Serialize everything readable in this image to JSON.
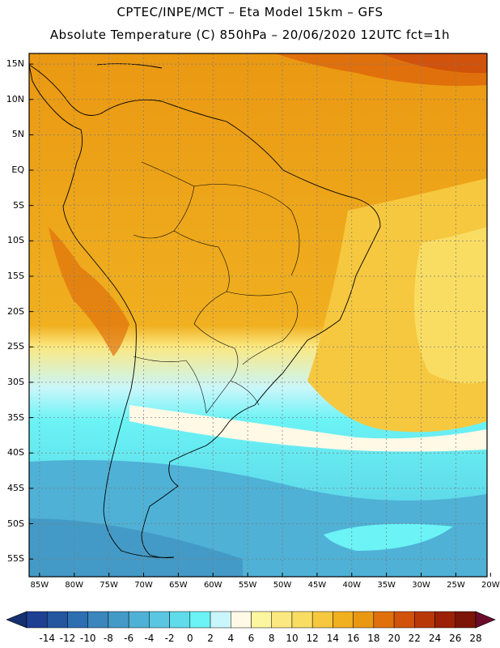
{
  "header": {
    "line1": "CPTEC/INPE/MCT –  Eta Model 15km – GFS",
    "line2": "Absolute Temperature (C) 850hPa – 20/06/2020 12UTC fct=1h"
  },
  "map": {
    "lat_labels": [
      "15N",
      "10N",
      "5N",
      "EQ",
      "5S",
      "10S",
      "15S",
      "20S",
      "25S",
      "30S",
      "35S",
      "40S",
      "45S",
      "50S",
      "55S"
    ],
    "lon_labels": [
      "85W",
      "80W",
      "75W",
      "70W",
      "65W",
      "60W",
      "55W",
      "50W",
      "45W",
      "40W",
      "35W",
      "30W",
      "25W",
      "20W"
    ],
    "lat_values": [
      15,
      10,
      5,
      0,
      -5,
      -10,
      -15,
      -20,
      -25,
      -30,
      -35,
      -40,
      -45,
      -50,
      -55
    ],
    "lon_values": [
      -85,
      -80,
      -75,
      -70,
      -65,
      -60,
      -55,
      -50,
      -45,
      -40,
      -35,
      -30,
      -25,
      -20
    ],
    "lat_range": [
      -57.5,
      16.5
    ],
    "lon_range": [
      -86.5,
      -20.5
    ],
    "grid": true
  },
  "colorbar": {
    "labels": [
      "-14",
      "-12",
      "-10",
      "-8",
      "-6",
      "-4",
      "-2",
      "0",
      "2",
      "4",
      "6",
      "8",
      "10",
      "12",
      "14",
      "16",
      "18",
      "20",
      "22",
      "24",
      "26",
      "28"
    ],
    "colors": [
      "#1f3f93",
      "#24569f",
      "#2d6fb0",
      "#3a86bd",
      "#449ac6",
      "#4fb1d6",
      "#5ac6e1",
      "#5fdbea",
      "#6bf3f5",
      "#c9f6fb",
      "#fff9e6",
      "#fdf6a0",
      "#fbe880",
      "#f9dd63",
      "#f6c83f",
      "#f0b020",
      "#ea9812",
      "#e0700c",
      "#d1520a",
      "#b93808",
      "#9c2006",
      "#7c1408"
    ],
    "arrow_low": "#153070",
    "arrow_high": "#6a0c2a"
  }
}
